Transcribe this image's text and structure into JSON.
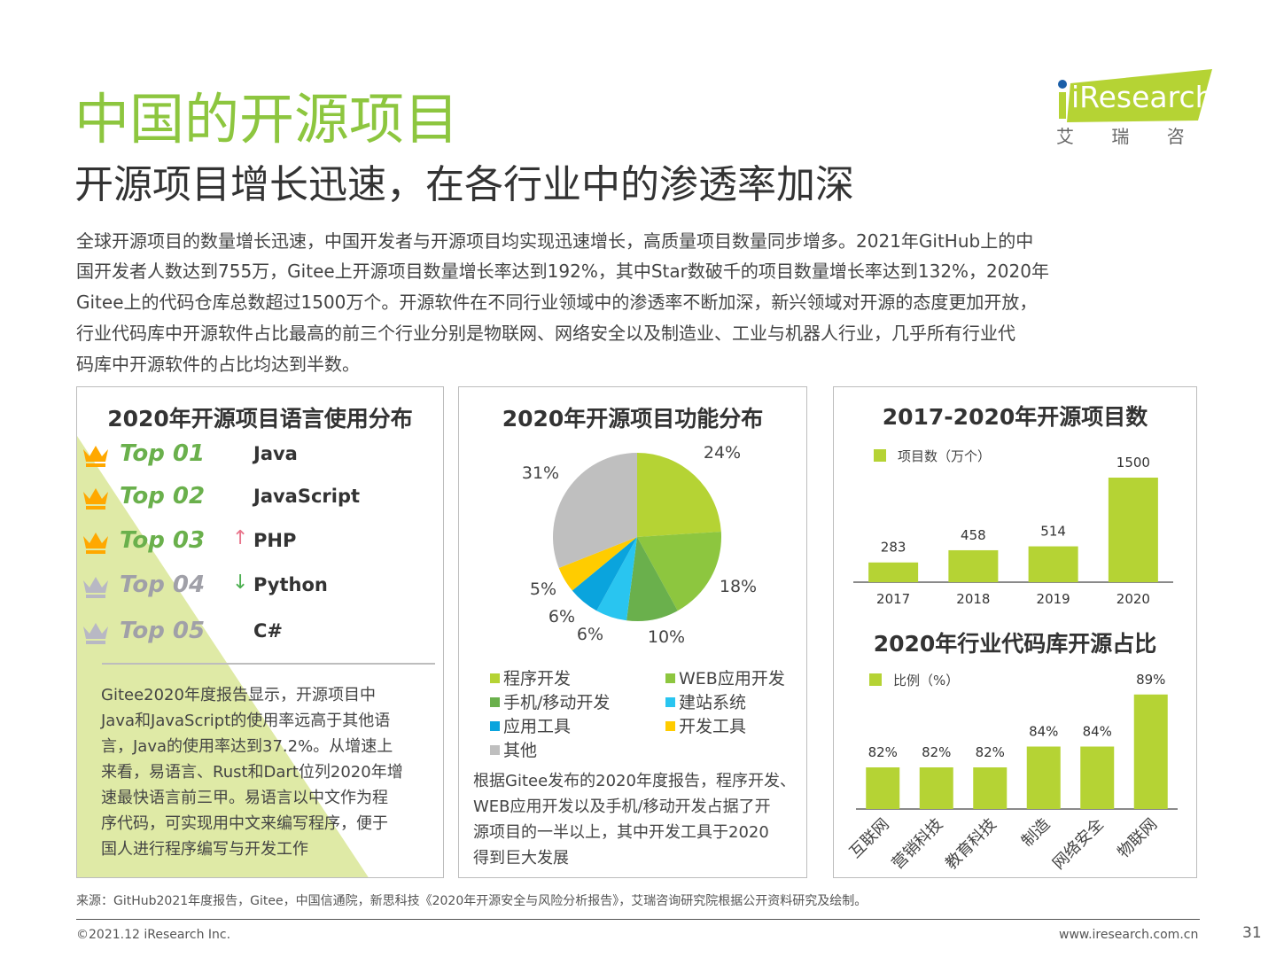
{
  "header": {
    "title": "中国的开源项目",
    "subtitle": "开源项目增长迅速，在各行业中的渗透率加深",
    "logo": {
      "brand": "iResearch",
      "chinese": "艾 瑞 咨 询",
      "color": "#b5d334"
    }
  },
  "body_lines": [
    "全球开源项目的数量增长迅速，中国开发者与开源项目均实现迅速增长，高质量项目数量同步增多。2021年GitHub上的中",
    "国开发者人数达到755万，Gitee上开源项目数量增长率达到192%，其中Star数破千的项目数量增长率达到132%，2020年",
    "Gitee上的代码仓库总数超过1500万个。开源软件在不同行业领域中的渗透率不断加深，新兴领域对开源的态度更加开放，",
    "行业代码库中开源软件占比最高的前三个行业分别是物联网、网络安全以及制造业、工业与机器人行业，几乎所有行业代",
    "码库中开源软件的占比均达到半数。"
  ],
  "language_panel": {
    "title": "2020年开源项目语言使用分布",
    "ranks": [
      {
        "rank": "Top 01",
        "language": "Java",
        "trend": "",
        "crown": "gold"
      },
      {
        "rank": "Top 02",
        "language": "JavaScript",
        "trend": "",
        "crown": "gold"
      },
      {
        "rank": "Top 03",
        "language": "PHP",
        "trend": "↑",
        "crown": "gold"
      },
      {
        "rank": "Top 04",
        "language": "Python",
        "trend": "↓",
        "crown": "silver"
      },
      {
        "rank": "Top 05",
        "language": "C#",
        "trend": "",
        "crown": "silver"
      }
    ],
    "note_lines": [
      "Gitee2020年度报告显示，开源项目中",
      "Java和JavaScript的使用率远高于其他语",
      "言，Java的使用率达到37.2%。从增速上",
      "来看，易语言、Rust和Dart位列2020年增",
      "速最快语言前三甲。易语言以中文作为程",
      "序代码，可实现用中文来编写程序，便于",
      "国人进行程序编写与开发工作"
    ]
  },
  "function_panel": {
    "note_lines": [
      "根据Gitee发布的2020年度报告，程序开发、",
      "WEB应用开发以及手机/移动开发占据了开",
      "源项目的一半以上，其中开发工具于2020",
      "得到巨大发展"
    ]
  },
  "chart_data": [
    {
      "type": "pie",
      "title": "2020年开源项目功能分布",
      "start": "12 o'clock, clockwise",
      "categories": [
        "程序开发",
        "WEB应用开发",
        "手机/移动开发",
        "建站系统",
        "应用工具",
        "开发工具",
        "其他"
      ],
      "values": [
        24,
        18,
        10,
        6,
        6,
        5,
        31
      ],
      "labels": [
        "24%",
        "18%",
        "10%",
        "6%",
        "6%",
        "5%",
        "31%"
      ],
      "colors": [
        "#b5d334",
        "#8dc63f",
        "#6ab04c",
        "#29c5f0",
        "#0aa4dd",
        "#ffcc00",
        "#bfbfbf"
      ],
      "legend": "bottom"
    },
    {
      "type": "bar",
      "title": "2017-2020年开源项目数",
      "series": [
        {
          "name": "项目数（万个）",
          "values": [
            283,
            458,
            514,
            1500
          ]
        }
      ],
      "categories": [
        "2017",
        "2018",
        "2019",
        "2020"
      ],
      "labels": [
        "283",
        "458",
        "514",
        "1500"
      ],
      "color": "#b5d334",
      "ylim": [
        0,
        1500
      ],
      "legend": "top-left"
    },
    {
      "type": "bar",
      "title": "2020年行业代码库开源占比",
      "series": [
        {
          "name": "比例（%）",
          "values": [
            82,
            82,
            82,
            84,
            84,
            89
          ]
        }
      ],
      "categories": [
        "互联网",
        "营销科技",
        "教育科技",
        "制造",
        "网络安全",
        "物联网"
      ],
      "labels": [
        "82%",
        "82%",
        "82%",
        "84%",
        "84%",
        "89%"
      ],
      "color": "#b5d334",
      "ylim": [
        78,
        90
      ],
      "legend": "top-left"
    }
  ],
  "footer": {
    "source": "来源：GitHub2021年度报告，Gitee，中国信通院，新思科技《2020年开源安全与风险分析报告》，艾瑞咨询研究院根据公开资料研究及绘制。",
    "copyright": "©2021.12 iResearch Inc.",
    "website": "www.iresearch.com.cn",
    "page": "31"
  }
}
